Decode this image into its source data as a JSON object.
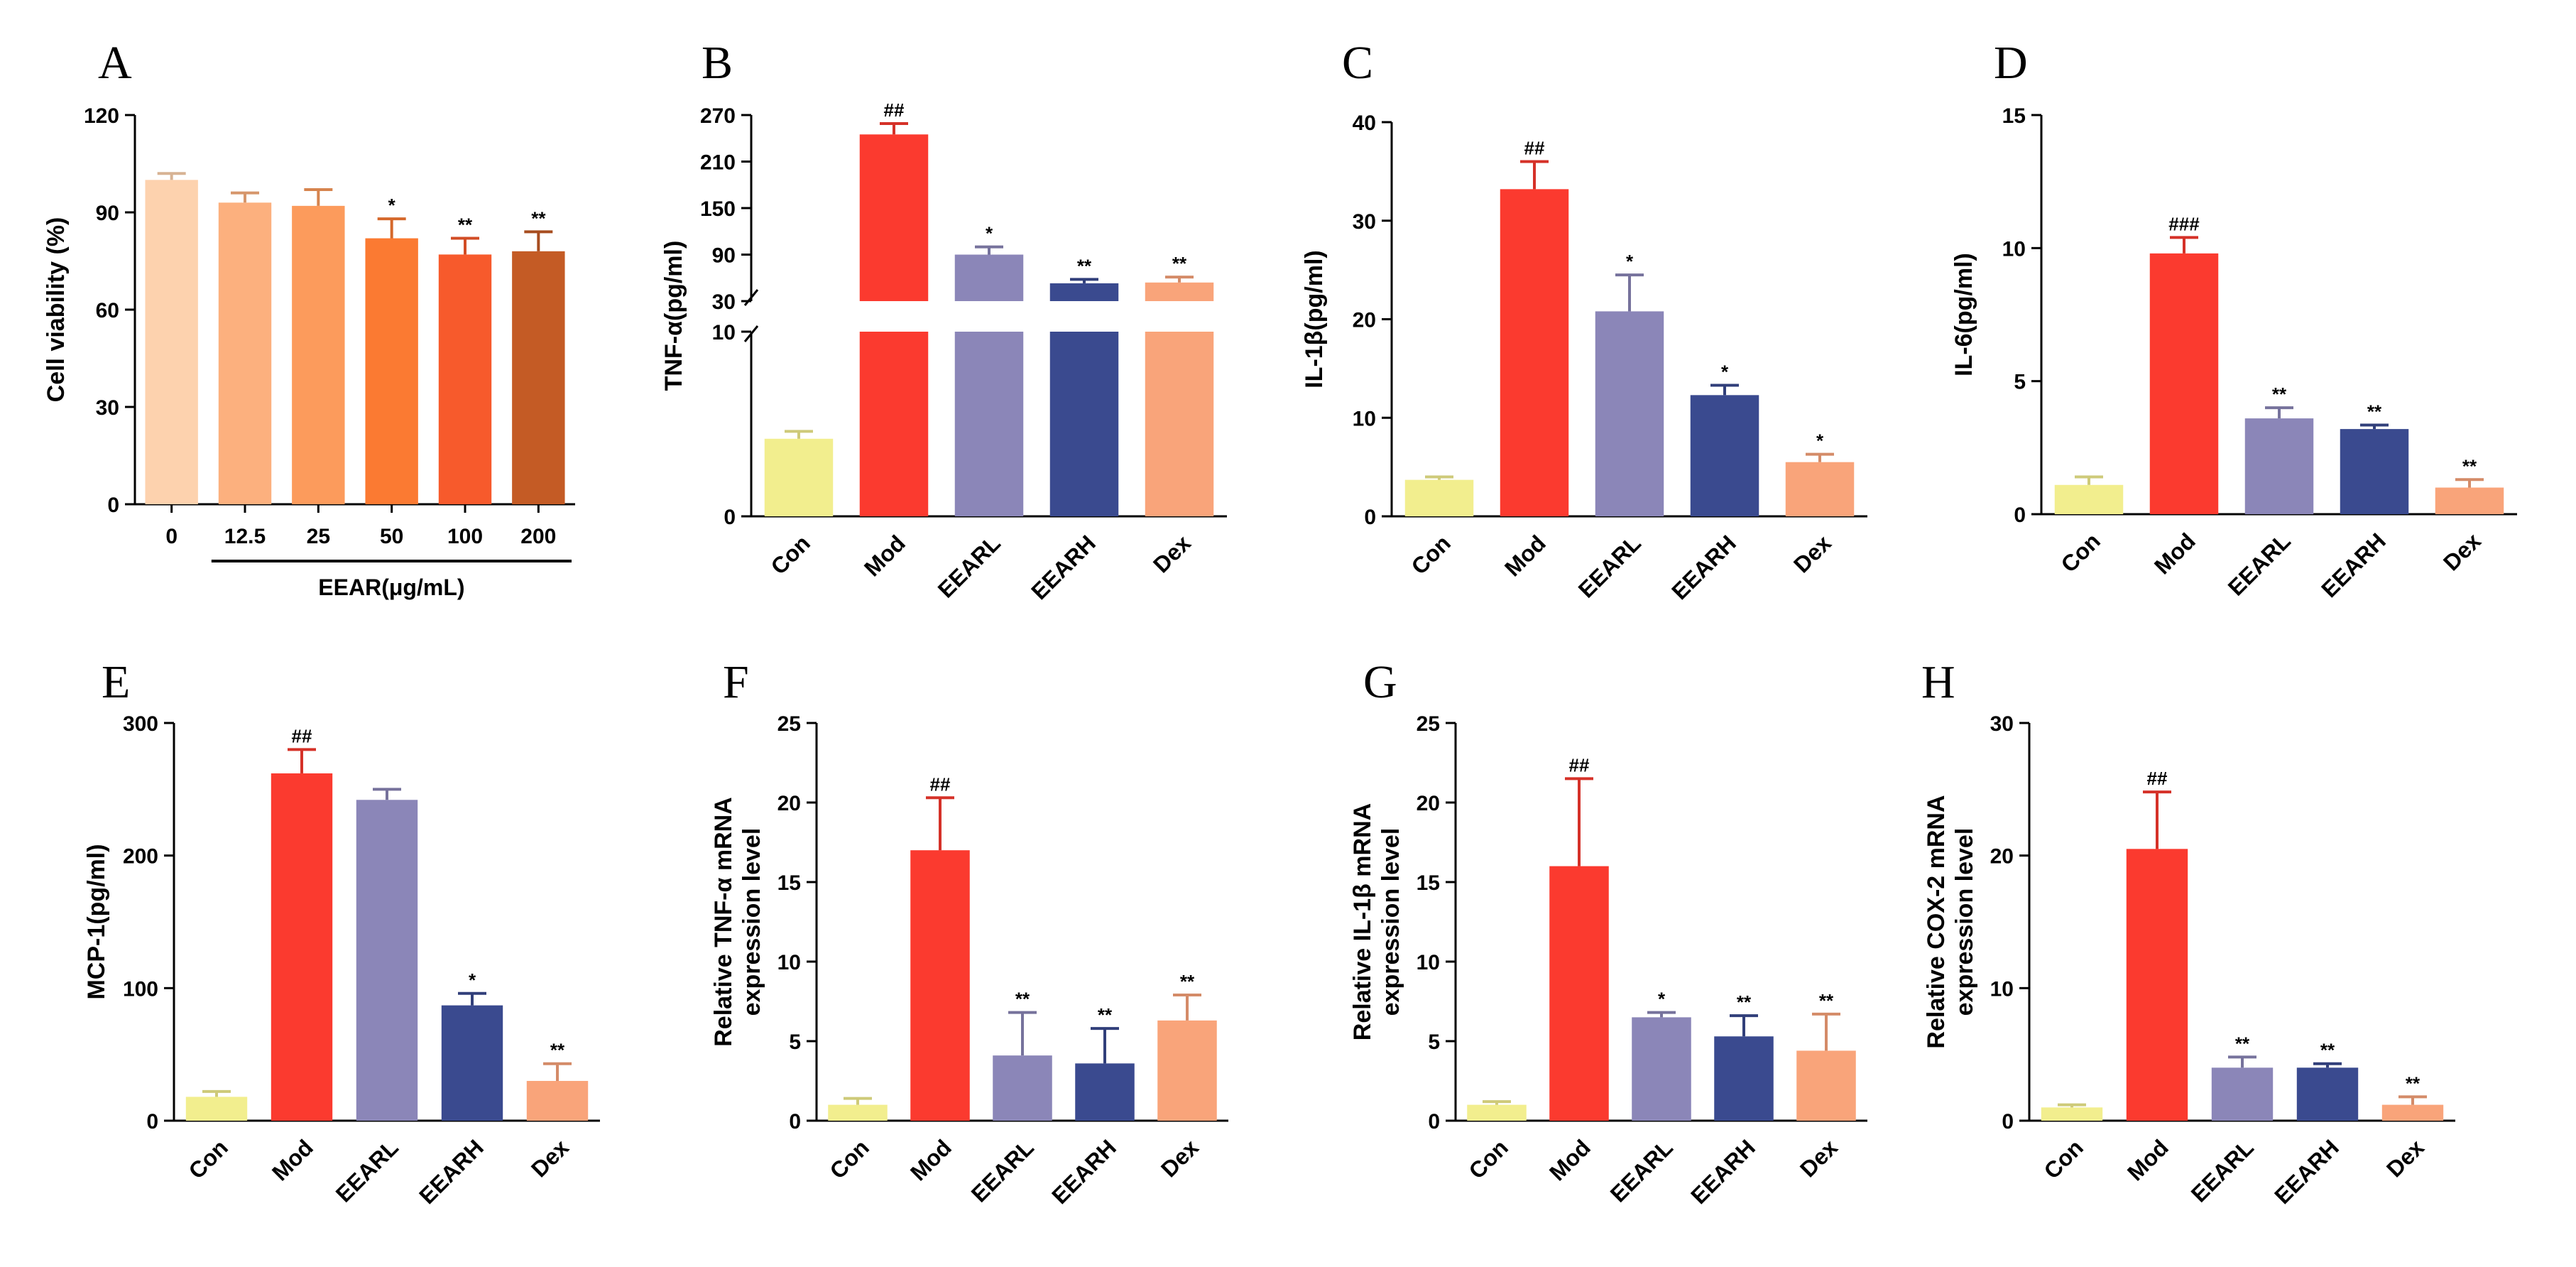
{
  "chart_data": [
    {
      "panel": "A",
      "type": "bar",
      "ylabel": "Cell  viability (%)",
      "xlabel": "EEAR(μg/mL)",
      "categories": [
        "0",
        "12.5",
        "25",
        "50",
        "100",
        "200"
      ],
      "values": [
        100,
        93,
        92,
        82,
        77,
        78
      ],
      "errors": [
        2,
        3,
        5,
        6,
        5,
        6
      ],
      "significance": [
        "",
        "",
        "",
        "*",
        "**",
        "**"
      ],
      "yticks": [
        0,
        30,
        60,
        90,
        120
      ],
      "ylim": [
        0,
        120
      ],
      "colors": [
        "#fdd2ae",
        "#fcb07e",
        "#fc9b5c",
        "#fb7a32",
        "#f75a2c",
        "#c45b25"
      ]
    },
    {
      "panel": "B",
      "type": "bar",
      "ylabel": "TNF-α(pg/ml)",
      "categories": [
        "Con",
        "Mod",
        "EEARL",
        "EEARH",
        "Dex"
      ],
      "values": [
        4.2,
        245,
        90,
        53,
        54
      ],
      "errors": [
        0.4,
        14,
        10,
        5,
        7
      ],
      "significance": [
        "",
        "##",
        "*",
        "**",
        "**"
      ],
      "yticks_lower": [
        0,
        10
      ],
      "yticks_upper": [
        30,
        90,
        150,
        210,
        270
      ],
      "broken_axis": {
        "lower": [
          0,
          10
        ],
        "upper": [
          30,
          270
        ]
      },
      "colors": [
        "#f2ee8e",
        "#fb3a2f",
        "#8b86b8",
        "#3a4a8f",
        "#f9a47a"
      ]
    },
    {
      "panel": "C",
      "type": "bar",
      "ylabel": "IL-1β(pg/ml)",
      "categories": [
        "Con",
        "Mod",
        "EEARL",
        "EEARH",
        "Dex"
      ],
      "values": [
        3.7,
        33.2,
        20.8,
        12.3,
        5.5
      ],
      "errors": [
        0.3,
        2.8,
        3.7,
        1.0,
        0.8
      ],
      "significance": [
        "",
        "##",
        "*",
        "*",
        "*"
      ],
      "yticks": [
        0,
        10,
        20,
        30,
        40
      ],
      "ylim": [
        0,
        40
      ],
      "colors": [
        "#f2ee8e",
        "#fb3a2f",
        "#8b86b8",
        "#3a4a8f",
        "#f9a47a"
      ]
    },
    {
      "panel": "D",
      "type": "bar",
      "ylabel": "IL-6(pg/ml)",
      "categories": [
        "Con",
        "Mod",
        "EEARL",
        "EEARH",
        "Dex"
      ],
      "values": [
        1.1,
        9.8,
        3.6,
        3.2,
        1.0
      ],
      "errors": [
        0.3,
        0.6,
        0.4,
        0.15,
        0.3
      ],
      "significance": [
        "",
        "###",
        "**",
        "**",
        "**"
      ],
      "yticks": [
        0,
        5,
        10,
        15
      ],
      "ylim": [
        0,
        15
      ],
      "colors": [
        "#f2ee8e",
        "#fb3a2f",
        "#8b86b8",
        "#3a4a8f",
        "#f9a47a"
      ]
    },
    {
      "panel": "E",
      "type": "bar",
      "ylabel": "MCP-1(pg/ml)",
      "categories": [
        "Con",
        "Mod",
        "EEARL",
        "EEARH",
        "Dex"
      ],
      "values": [
        18,
        262,
        242,
        87,
        30
      ],
      "errors": [
        4,
        18,
        8,
        9,
        13
      ],
      "significance": [
        "",
        "##",
        "",
        "*",
        "**"
      ],
      "yticks": [
        0,
        100,
        200,
        300
      ],
      "ylim": [
        0,
        300
      ],
      "colors": [
        "#f2ee8e",
        "#fb3a2f",
        "#8b86b8",
        "#3a4a8f",
        "#f9a47a"
      ]
    },
    {
      "panel": "F",
      "type": "bar",
      "ylabel": [
        "Relative TNF-α mRNA",
        "expression level"
      ],
      "categories": [
        "Con",
        "Mod",
        "EEARL",
        "EEARH",
        "Dex"
      ],
      "values": [
        1.0,
        17.0,
        4.1,
        3.6,
        6.3
      ],
      "errors": [
        0.4,
        3.3,
        2.7,
        2.2,
        1.6
      ],
      "significance": [
        "",
        "##",
        "**",
        "**",
        "**"
      ],
      "yticks": [
        0,
        5,
        10,
        15,
        20,
        25
      ],
      "ylim": [
        0,
        25
      ],
      "colors": [
        "#f2ee8e",
        "#fb3a2f",
        "#8b86b8",
        "#3a4a8f",
        "#f9a47a"
      ]
    },
    {
      "panel": "G",
      "type": "bar",
      "ylabel": [
        "Relative IL-1β mRNA",
        "expression level"
      ],
      "categories": [
        "Con",
        "Mod",
        "EEARL",
        "EEARH",
        "Dex"
      ],
      "values": [
        1.0,
        16.0,
        6.5,
        5.3,
        4.4
      ],
      "errors": [
        0.2,
        5.5,
        0.3,
        1.3,
        2.3
      ],
      "significance": [
        "",
        "##",
        "*",
        "**",
        "**"
      ],
      "yticks": [
        0,
        5,
        10,
        15,
        20,
        25
      ],
      "ylim": [
        0,
        25
      ],
      "colors": [
        "#f2ee8e",
        "#fb3a2f",
        "#8b86b8",
        "#3a4a8f",
        "#f9a47a"
      ]
    },
    {
      "panel": "H",
      "type": "bar",
      "ylabel": [
        "Relative COX-2 mRNA",
        "expression level"
      ],
      "categories": [
        "Con",
        "Mod",
        "EEARL",
        "EEARH",
        "Dex"
      ],
      "values": [
        1.0,
        20.5,
        4.0,
        4.0,
        1.2
      ],
      "errors": [
        0.2,
        4.3,
        0.8,
        0.3,
        0.6
      ],
      "significance": [
        "",
        "##",
        "**",
        "**",
        "**"
      ],
      "yticks": [
        0,
        10,
        20,
        30
      ],
      "ylim": [
        0,
        30
      ],
      "colors": [
        "#f2ee8e",
        "#fb3a2f",
        "#8b86b8",
        "#3a4a8f",
        "#f9a47a"
      ]
    }
  ]
}
